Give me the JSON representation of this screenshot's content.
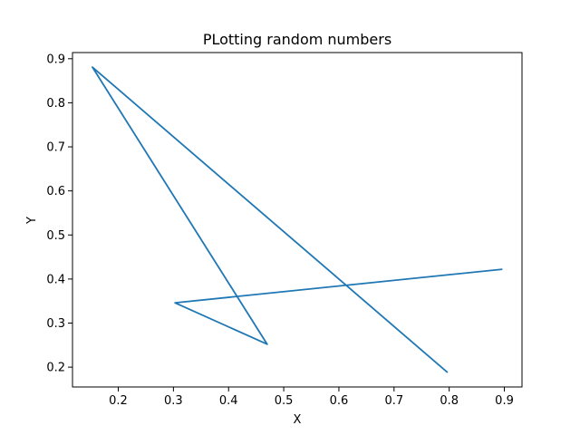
{
  "chart_data": {
    "type": "line",
    "title": "PLotting random numbers",
    "xlabel": "X",
    "ylabel": "Y",
    "xlim": [
      0.117,
      0.932
    ],
    "ylim": [
      0.155,
      0.914
    ],
    "xticks": [
      0.2,
      0.3,
      0.4,
      0.5,
      0.6,
      0.7,
      0.8,
      0.9
    ],
    "yticks": [
      0.2,
      0.3,
      0.4,
      0.5,
      0.6,
      0.7,
      0.8,
      0.9
    ],
    "grid": false,
    "series": [
      {
        "color": "#1f77b4",
        "x": [
          0.796,
          0.153,
          0.47,
          0.303,
          0.895
        ],
        "y": [
          0.189,
          0.881,
          0.252,
          0.346,
          0.422
        ]
      }
    ]
  }
}
